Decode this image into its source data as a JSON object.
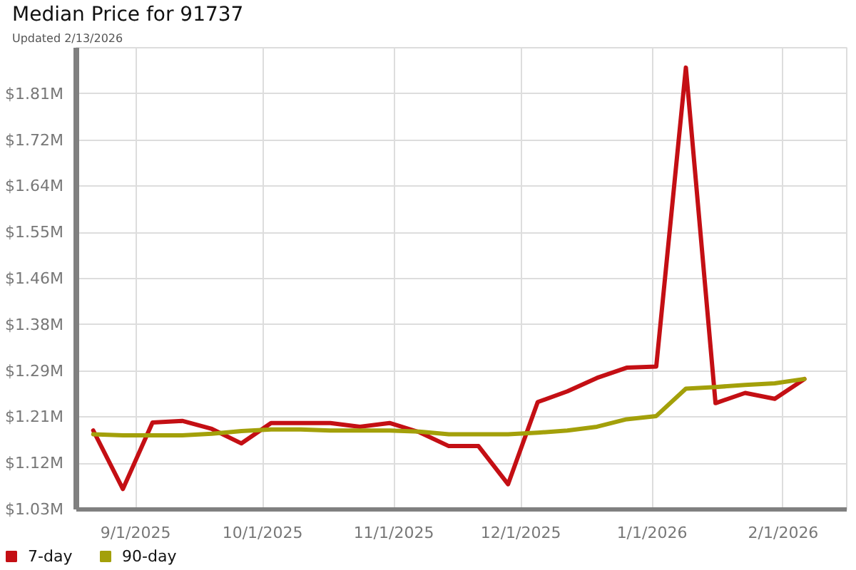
{
  "chart_data": {
    "type": "line",
    "title": "Median Price for 91737",
    "subtitle": "Updated 2/13/2026",
    "x": [
      "2025-08-22",
      "2025-08-29",
      "2025-09-05",
      "2025-09-12",
      "2025-09-19",
      "2025-09-26",
      "2025-10-03",
      "2025-10-10",
      "2025-10-17",
      "2025-10-24",
      "2025-10-31",
      "2025-11-07",
      "2025-11-14",
      "2025-11-21",
      "2025-11-28",
      "2025-12-05",
      "2025-12-12",
      "2025-12-19",
      "2025-12-26",
      "2026-01-02",
      "2026-01-09",
      "2026-01-16",
      "2026-01-23",
      "2026-01-30",
      "2026-02-06"
    ],
    "series": [
      {
        "name": "7-day",
        "color": "#c40f14",
        "values": [
          1.181,
          1.072,
          1.196,
          1.199,
          1.184,
          1.157,
          1.195,
          1.195,
          1.195,
          1.188,
          1.195,
          1.178,
          1.152,
          1.152,
          1.081,
          1.234,
          1.254,
          1.279,
          1.298,
          1.3,
          1.857,
          1.232,
          1.251,
          1.24,
          1.277
        ]
      },
      {
        "name": "90-day",
        "color": "#a3a00a",
        "values": [
          1.174,
          1.172,
          1.172,
          1.172,
          1.175,
          1.18,
          1.183,
          1.183,
          1.181,
          1.181,
          1.181,
          1.179,
          1.174,
          1.174,
          1.174,
          1.177,
          1.181,
          1.188,
          1.202,
          1.208,
          1.259,
          1.262,
          1.266,
          1.269,
          1.277
        ]
      }
    ],
    "xlim": [
      "2025-08-18",
      "2026-02-16"
    ],
    "xticks": [
      {
        "value": "2025-09-01",
        "label": "9/1/2025"
      },
      {
        "value": "2025-10-01",
        "label": "10/1/2025"
      },
      {
        "value": "2025-11-01",
        "label": "11/1/2025"
      },
      {
        "value": "2025-12-01",
        "label": "12/1/2025"
      },
      {
        "value": "2026-01-01",
        "label": "1/1/2026"
      },
      {
        "value": "2026-02-01",
        "label": "2/1/2026"
      }
    ],
    "ylim": [
      1.034,
      1.894
    ],
    "yticks": [
      {
        "value": 1.034,
        "label": "$1.03M"
      },
      {
        "value": 1.12,
        "label": "$1.12M"
      },
      {
        "value": 1.206,
        "label": "$1.21M"
      },
      {
        "value": 1.292,
        "label": "$1.29M"
      },
      {
        "value": 1.378,
        "label": "$1.38M"
      },
      {
        "value": 1.464,
        "label": "$1.46M"
      },
      {
        "value": 1.55,
        "label": "$1.55M"
      },
      {
        "value": 1.636,
        "label": "$1.64M"
      },
      {
        "value": 1.722,
        "label": "$1.72M"
      },
      {
        "value": 1.808,
        "label": "$1.81M"
      }
    ],
    "grid": true,
    "legend": "bottom left",
    "line_style": "solid"
  }
}
